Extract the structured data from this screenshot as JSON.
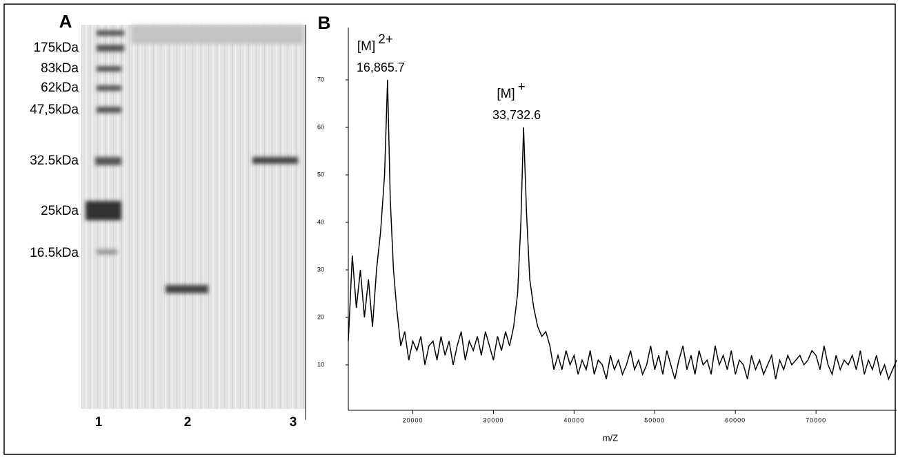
{
  "gel": {
    "panel_label": "A",
    "markers": [
      "175kDa",
      "83kDa",
      "62kDa",
      "47,5kDa",
      "32.5kDa",
      "25kDa",
      "16.5kDa"
    ],
    "lanes": [
      "1",
      "2",
      "3"
    ]
  },
  "chart_data": {
    "type": "line",
    "panel_label": "B",
    "xlabel": "m/Z",
    "color": "#000000",
    "x": [
      12000,
      12500,
      13000,
      13500,
      14000,
      14500,
      15000,
      15500,
      16000,
      16500,
      16866,
      17200,
      17600,
      18000,
      18500,
      19000,
      19500,
      20000,
      20500,
      21000,
      21500,
      22000,
      22500,
      23000,
      23500,
      24000,
      24500,
      25000,
      25500,
      26000,
      26500,
      27000,
      27500,
      28000,
      28500,
      29000,
      29500,
      30000,
      30500,
      31000,
      31500,
      32000,
      32500,
      33000,
      33400,
      33733,
      34100,
      34500,
      35000,
      35500,
      36000,
      36500,
      37000,
      37500,
      38000,
      38500,
      39000,
      39500,
      40000,
      40500,
      41000,
      41500,
      42000,
      42500,
      43000,
      43500,
      44000,
      44500,
      45000,
      45500,
      46000,
      46500,
      47000,
      47500,
      48000,
      48500,
      49000,
      49500,
      50000,
      50500,
      51000,
      51500,
      52000,
      52500,
      53000,
      53500,
      54000,
      54500,
      55000,
      55500,
      56000,
      56500,
      57000,
      57500,
      58000,
      58500,
      59000,
      59500,
      60000,
      60500,
      61000,
      61500,
      62000,
      62500,
      63000,
      63500,
      64000,
      64500,
      65000,
      65500,
      66000,
      66500,
      67000,
      67500,
      68000,
      68500,
      69000,
      69500,
      70000,
      70500,
      71000,
      71500,
      72000,
      72500,
      73000,
      73500,
      74000,
      74500,
      75000,
      75500,
      76000,
      76500,
      77000,
      77500,
      78000,
      78500,
      79000,
      79500,
      80000
    ],
    "values": [
      15,
      33,
      22,
      30,
      20,
      28,
      18,
      30,
      38,
      50,
      70,
      45,
      30,
      22,
      14,
      17,
      11,
      15,
      13,
      16,
      10,
      14,
      15,
      11,
      16,
      12,
      15,
      10,
      14,
      17,
      11,
      15,
      13,
      16,
      12,
      17,
      14,
      11,
      16,
      13,
      17,
      14,
      18,
      25,
      40,
      60,
      42,
      28,
      22,
      18,
      16,
      17,
      14,
      9,
      12,
      9,
      13,
      10,
      12,
      8,
      11,
      9,
      13,
      8,
      11,
      10,
      7,
      12,
      9,
      11,
      8,
      10,
      13,
      9,
      11,
      8,
      10,
      14,
      9,
      12,
      8,
      13,
      10,
      7,
      11,
      14,
      9,
      12,
      8,
      13,
      10,
      11,
      8,
      14,
      10,
      12,
      9,
      13,
      8,
      11,
      10,
      7,
      12,
      9,
      11,
      8,
      10,
      12,
      7,
      11,
      9,
      12,
      10,
      11,
      12,
      10,
      11,
      13,
      12,
      9,
      14,
      10,
      8,
      12,
      9,
      11,
      10,
      12,
      9,
      13,
      8,
      11,
      9,
      12,
      8,
      10,
      7,
      9,
      11
    ],
    "xlim": [
      12000,
      80000
    ],
    "ylim": [
      0,
      80
    ],
    "xticks": [
      20000,
      30000,
      40000,
      50000,
      60000,
      70000
    ],
    "yticks": [
      10,
      20,
      30,
      40,
      50,
      60,
      70
    ],
    "annotations": [
      {
        "label": "[M]",
        "charge": "2+",
        "text": "16,865.7",
        "x": 16866,
        "y": 70
      },
      {
        "label": "[M]",
        "charge": "+",
        "text": "33,732.6",
        "x": 33733,
        "y": 60
      }
    ]
  }
}
